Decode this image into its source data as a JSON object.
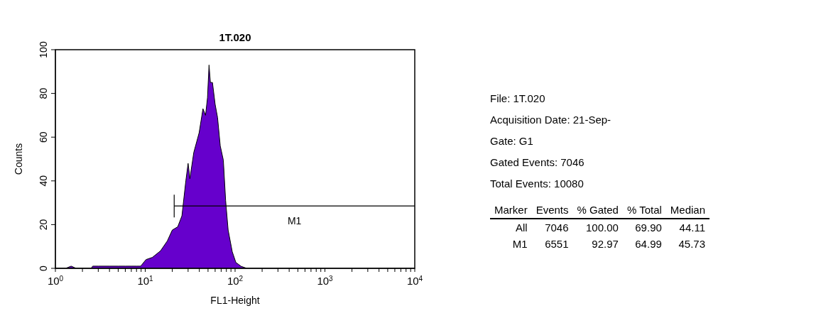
{
  "chart_data": [
    {
      "type": "area",
      "title": "1T.020",
      "xlabel": "FL1-Height",
      "ylabel": "Counts",
      "log": "x",
      "x": [
        1,
        1.3,
        1.5,
        1.7,
        2.5,
        2.6,
        3,
        4,
        5,
        6,
        7,
        8,
        8.9,
        10.2,
        12,
        14.8,
        17.6,
        20,
        23,
        25.6,
        28.3,
        30,
        31.4,
        34.7,
        39.8,
        43.9,
        46.9,
        49.3,
        51.3,
        53.1,
        56,
        60,
        63.8,
        68.4,
        74,
        78.5,
        83.7,
        93,
        102,
        117,
        135,
        10000
      ],
      "series": [
        {
          "color": "#6600cc",
          "values": [
            0,
            0,
            1,
            0,
            0,
            1,
            1,
            1,
            1,
            1,
            1,
            1,
            1,
            4,
            5,
            8,
            12.5,
            17.5,
            19,
            24,
            40,
            48,
            41,
            53,
            62,
            73,
            70,
            78,
            93,
            85,
            85,
            75,
            69,
            56,
            49.5,
            31,
            17.5,
            7.6,
            2.7,
            0.9,
            0,
            0
          ]
        },
        {
          "type": "line",
          "name": "M1",
          "color": "#000000",
          "x": [
            21,
            10000
          ],
          "values": [
            28.5,
            28.5
          ]
        }
      ],
      "xlim": [
        1,
        10000
      ],
      "xticks": [
        {
          "value": 1,
          "label": "10$^{0}$"
        },
        {
          "value": 2,
          "label": null
        },
        {
          "value": 3,
          "label": null
        },
        {
          "value": 4,
          "label": null
        },
        {
          "value": 5,
          "label": null
        },
        {
          "value": 6,
          "label": null
        },
        {
          "value": 7,
          "label": null
        },
        {
          "value": 8,
          "label": null
        },
        {
          "value": 9,
          "label": null
        },
        {
          "value": 10,
          "label": "10$^{1}$"
        },
        {
          "value": 20,
          "label": null
        },
        {
          "value": 30,
          "label": null
        },
        {
          "value": 40,
          "label": null
        },
        {
          "value": 50,
          "label": null
        },
        {
          "value": 60,
          "label": null
        },
        {
          "value": 70,
          "label": null
        },
        {
          "value": 80,
          "label": null
        },
        {
          "value": 90,
          "label": null
        },
        {
          "value": 100,
          "label": "10$^{2}$"
        },
        {
          "value": 200,
          "label": null
        },
        {
          "value": 300,
          "label": null
        },
        {
          "value": 400,
          "label": null
        },
        {
          "value": 500,
          "label": null
        },
        {
          "value": 600,
          "label": null
        },
        {
          "value": 700,
          "label": null
        },
        {
          "value": 800,
          "label": null
        },
        {
          "value": 900,
          "label": null
        },
        {
          "value": 1000,
          "label": "10$^{3}$"
        },
        {
          "value": 2000,
          "label": null
        },
        {
          "value": 3000,
          "label": null
        },
        {
          "value": 4000,
          "label": null
        },
        {
          "value": 5000,
          "label": null
        },
        {
          "value": 6000,
          "label": null
        },
        {
          "value": 7000,
          "label": null
        },
        {
          "value": 8000,
          "label": null
        },
        {
          "value": 9000,
          "label": null
        },
        {
          "value": 10000,
          "label": "10$^{4}$"
        }
      ],
      "ylim": [
        0,
        100
      ],
      "yticks": [
        0,
        20,
        40,
        60,
        80,
        100
      ]
    },
    {
      "type": "other",
      "annotations": [
        "File: 1T.020",
        "Acquisition Date: 21-Sep-",
        "Gate: G1",
        "Gated Events: 7046",
        "Total Events: 10080",
        "Marker",
        "Events",
        "% Gated",
        "% Total",
        "Median",
        "All",
        "7046",
        "100.00",
        "69.90",
        "44.11",
        "M1",
        "6551",
        "92.97",
        "64.99",
        "45.73"
      ]
    }
  ]
}
